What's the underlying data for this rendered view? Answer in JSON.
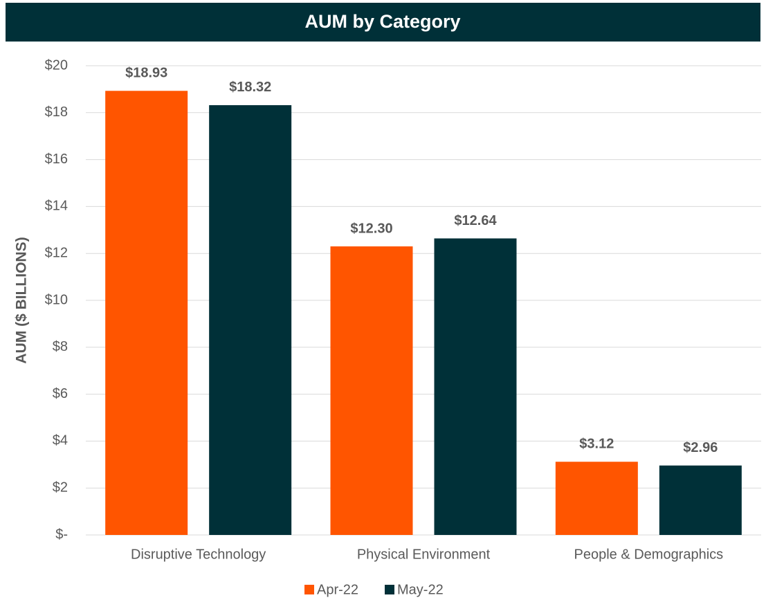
{
  "chart_data": {
    "type": "bar",
    "title": "AUM by Category",
    "ylabel": "AUM ($ BILLIONS)",
    "categories": [
      "Disruptive Technology",
      "Physical Environment",
      "People & Demographics"
    ],
    "series": [
      {
        "name": "Apr-22",
        "color": "#ff5500",
        "values": [
          18.93,
          12.3,
          3.12
        ],
        "value_labels": [
          "$18.93",
          "$12.30",
          "$3.12"
        ]
      },
      {
        "name": "May-22",
        "color": "#003038",
        "values": [
          18.32,
          12.64,
          2.96
        ],
        "value_labels": [
          "$18.32",
          "$12.64",
          "$2.96"
        ]
      }
    ],
    "ylim": [
      0,
      20
    ],
    "yticks": [
      {
        "value": 0,
        "label": "$-"
      },
      {
        "value": 2,
        "label": "$2"
      },
      {
        "value": 4,
        "label": "$4"
      },
      {
        "value": 6,
        "label": "$6"
      },
      {
        "value": 8,
        "label": "$8"
      },
      {
        "value": 10,
        "label": "$10"
      },
      {
        "value": 12,
        "label": "$12"
      },
      {
        "value": 14,
        "label": "$14"
      },
      {
        "value": 16,
        "label": "$16"
      },
      {
        "value": 18,
        "label": "$18"
      },
      {
        "value": 20,
        "label": "$20"
      }
    ],
    "grid": true,
    "legend": "bottom"
  }
}
